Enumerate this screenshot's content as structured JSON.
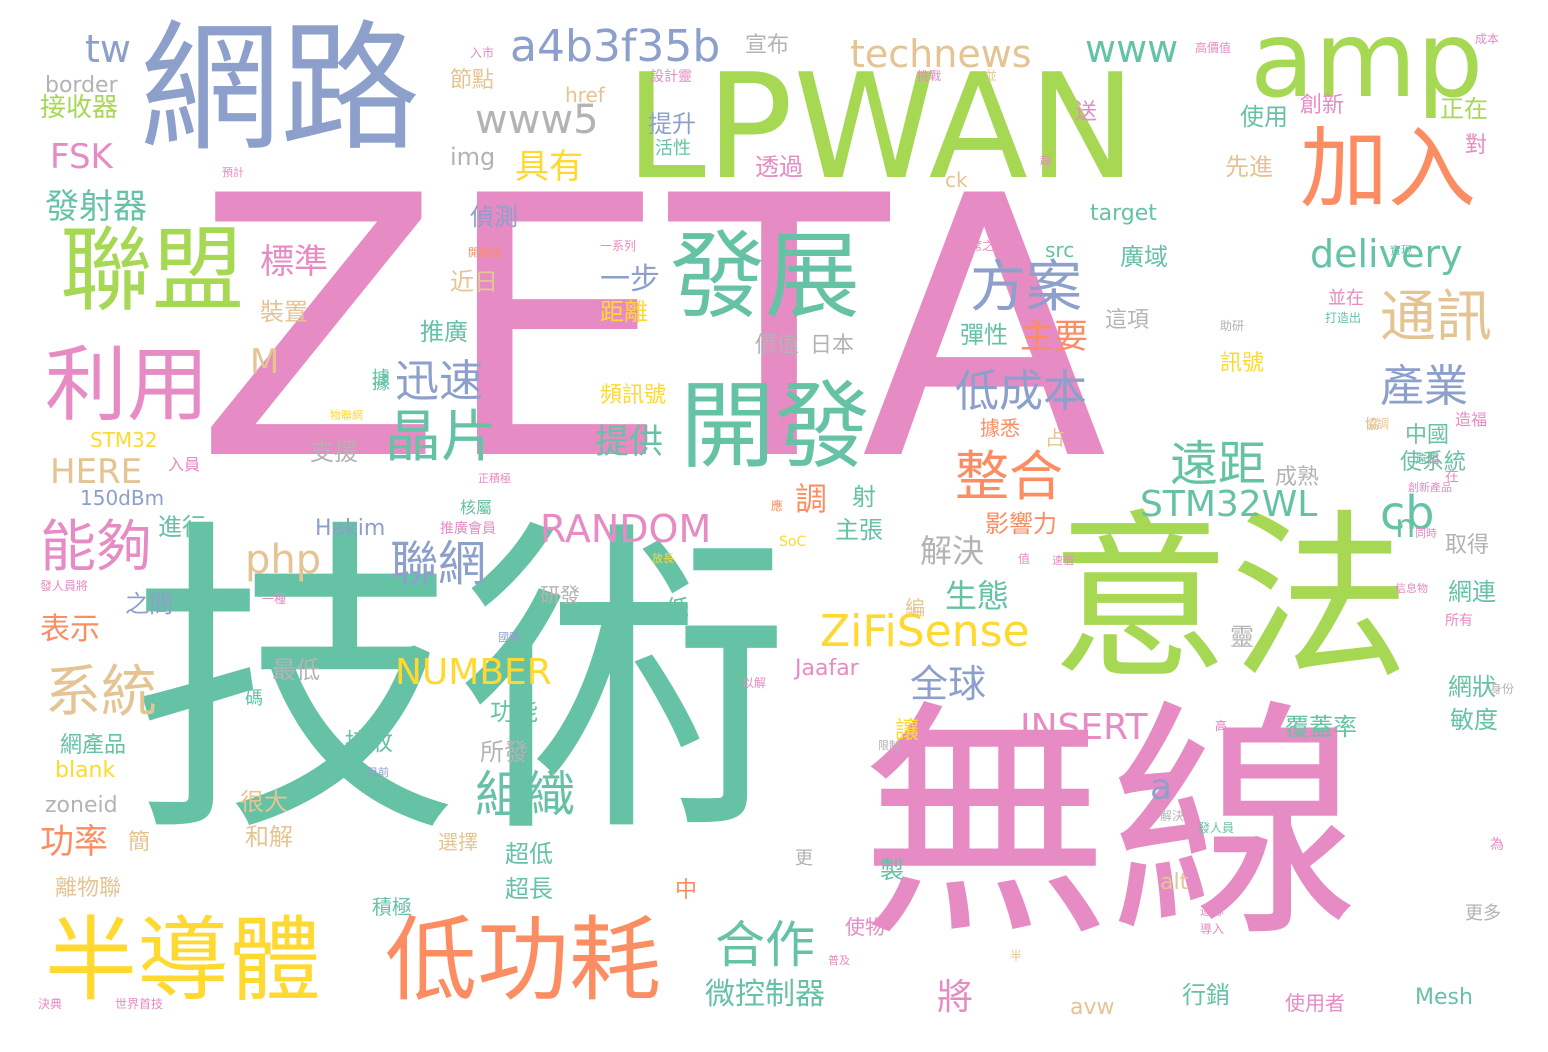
{
  "palette": {
    "pink": "#e68bc3",
    "teal": "#66c2a5",
    "orange": "#fc8d62",
    "blue": "#8da0cb",
    "green": "#a6d854",
    "yellow": "#ffd92f",
    "tan": "#e5c494",
    "gray": "#b3b3b3"
  },
  "words": [
    {
      "text": "ZETA",
      "color": "pink"
    },
    {
      "text": "技術",
      "color": "teal"
    },
    {
      "text": "無線",
      "color": "pink"
    },
    {
      "text": "意法",
      "color": "green"
    },
    {
      "text": "LPWAN",
      "color": "green"
    },
    {
      "text": "網路",
      "color": "blue"
    },
    {
      "text": "amp",
      "color": "green"
    },
    {
      "text": "半導體",
      "color": "yellow"
    },
    {
      "text": "低功耗",
      "color": "orange"
    },
    {
      "text": "聯盟",
      "color": "green"
    },
    {
      "text": "利用",
      "color": "pink"
    },
    {
      "text": "發展",
      "color": "teal"
    },
    {
      "text": "開發",
      "color": "teal"
    },
    {
      "text": "加入",
      "color": "orange"
    },
    {
      "text": "a4b3f35b",
      "color": "blue"
    },
    {
      "text": "technews",
      "color": "tan"
    },
    {
      "text": "www",
      "color": "teal"
    },
    {
      "text": "www5",
      "color": "gray"
    },
    {
      "text": "ZiFiSense",
      "color": "yellow"
    },
    {
      "text": "delivery",
      "color": "teal"
    },
    {
      "text": "方案",
      "color": "blue"
    },
    {
      "text": "通訊",
      "color": "tan"
    },
    {
      "text": "晶片",
      "color": "teal"
    },
    {
      "text": "能夠",
      "color": "pink"
    },
    {
      "text": "系統",
      "color": "tan"
    },
    {
      "text": "RANDOM",
      "color": "pink"
    },
    {
      "text": "STM32WL",
      "color": "teal"
    },
    {
      "text": "INSERT",
      "color": "pink"
    },
    {
      "text": "NUMBER",
      "color": "yellow"
    },
    {
      "text": "php",
      "color": "tan"
    },
    {
      "text": "低成本",
      "color": "blue"
    },
    {
      "text": "整合",
      "color": "orange"
    },
    {
      "text": "遠距",
      "color": "teal"
    },
    {
      "text": "產業",
      "color": "blue"
    },
    {
      "text": "組織",
      "color": "teal"
    },
    {
      "text": "合作",
      "color": "teal"
    },
    {
      "text": "聯網",
      "color": "blue"
    },
    {
      "text": "迅速",
      "color": "blue"
    },
    {
      "text": "全球",
      "color": "blue"
    },
    {
      "text": "cb",
      "color": "teal"
    },
    {
      "text": "tw",
      "color": "blue"
    },
    {
      "text": "FSK",
      "color": "pink"
    },
    {
      "text": "HERE",
      "color": "tan"
    },
    {
      "text": "具有",
      "color": "yellow"
    },
    {
      "text": "標準",
      "color": "pink"
    },
    {
      "text": "主要",
      "color": "orange"
    },
    {
      "text": "提供",
      "color": "teal"
    },
    {
      "text": "功率",
      "color": "orange"
    },
    {
      "text": "表示",
      "color": "orange"
    },
    {
      "text": "發射器",
      "color": "teal"
    },
    {
      "text": "微控制器",
      "color": "teal"
    },
    {
      "text": "生態",
      "color": "teal"
    },
    {
      "text": "解決",
      "color": "gray"
    },
    {
      "text": "一步",
      "color": "blue"
    },
    {
      "text": "border",
      "color": "gray"
    },
    {
      "text": "接收器",
      "color": "green"
    },
    {
      "text": "節點",
      "color": "tan"
    },
    {
      "text": "宣布",
      "color": "gray"
    },
    {
      "text": "img",
      "color": "gray"
    },
    {
      "text": "提升",
      "color": "blue"
    },
    {
      "text": "使用",
      "color": "teal"
    },
    {
      "text": "創新",
      "color": "pink"
    },
    {
      "text": "正在",
      "color": "green"
    },
    {
      "text": "透過",
      "color": "pink"
    },
    {
      "text": "先進",
      "color": "tan"
    },
    {
      "text": "target",
      "color": "teal"
    },
    {
      "text": "偵測",
      "color": "blue"
    },
    {
      "text": "src",
      "color": "teal"
    },
    {
      "text": "廣域",
      "color": "teal"
    },
    {
      "text": "近日",
      "color": "tan"
    },
    {
      "text": "距離",
      "color": "yellow"
    },
    {
      "text": "這項",
      "color": "gray"
    },
    {
      "text": "彈性",
      "color": "teal"
    },
    {
      "text": "裝置",
      "color": "tan"
    },
    {
      "text": "推廣",
      "color": "teal"
    },
    {
      "text": "價值",
      "color": "gray"
    },
    {
      "text": "日本",
      "color": "gray"
    },
    {
      "text": "訊號",
      "color": "yellow"
    },
    {
      "text": "頻訊號",
      "color": "yellow"
    },
    {
      "text": "STM32",
      "color": "yellow"
    },
    {
      "text": "支援",
      "color": "gray"
    },
    {
      "text": "150dBm",
      "color": "blue"
    },
    {
      "text": "Hakim",
      "color": "blue"
    },
    {
      "text": "進行",
      "color": "teal"
    },
    {
      "text": "主張",
      "color": "teal"
    },
    {
      "text": "影響力",
      "color": "orange"
    },
    {
      "text": "成熟",
      "color": "gray"
    },
    {
      "text": "中國",
      "color": "teal"
    },
    {
      "text": "使系統",
      "color": "teal"
    },
    {
      "text": "取得",
      "color": "gray"
    },
    {
      "text": "網連",
      "color": "teal"
    },
    {
      "text": "網狀",
      "color": "teal"
    },
    {
      "text": "敏度",
      "color": "teal"
    },
    {
      "text": "覆蓋率",
      "color": "teal"
    },
    {
      "text": "Jaafar",
      "color": "pink"
    },
    {
      "text": "最低",
      "color": "gray"
    },
    {
      "text": "功能",
      "color": "teal"
    },
    {
      "text": "接收",
      "color": "teal"
    },
    {
      "text": "所發",
      "color": "gray"
    },
    {
      "text": "網產品",
      "color": "teal"
    },
    {
      "text": "blank",
      "color": "yellow"
    },
    {
      "text": "zoneid",
      "color": "gray"
    },
    {
      "text": "很大",
      "color": "tan"
    },
    {
      "text": "和解",
      "color": "tan"
    },
    {
      "text": "超低",
      "color": "teal"
    },
    {
      "text": "超長",
      "color": "teal"
    },
    {
      "text": "離物聯",
      "color": "tan"
    },
    {
      "text": "之間",
      "color": "blue"
    },
    {
      "text": "研發",
      "color": "gray"
    },
    {
      "text": "讓",
      "color": "yellow"
    },
    {
      "text": "製",
      "color": "teal"
    },
    {
      "text": "alt",
      "color": "tan"
    },
    {
      "text": "積極",
      "color": "teal"
    },
    {
      "text": "行銷",
      "color": "teal"
    },
    {
      "text": "avw",
      "color": "tan"
    },
    {
      "text": "Mesh",
      "color": "teal"
    },
    {
      "text": "使用者",
      "color": "pink"
    },
    {
      "text": "更多",
      "color": "gray"
    },
    {
      "text": "將",
      "color": "pink"
    },
    {
      "text": "調",
      "color": "orange"
    },
    {
      "text": "射",
      "color": "teal"
    },
    {
      "text": "n",
      "color": "teal"
    },
    {
      "text": "a",
      "color": "blue"
    },
    {
      "text": "M",
      "color": "tan"
    },
    {
      "text": "靈",
      "color": "gray"
    },
    {
      "text": "更",
      "color": "gray"
    },
    {
      "text": "中",
      "color": "orange"
    },
    {
      "text": "低",
      "color": "teal"
    },
    {
      "text": "編",
      "color": "tan"
    },
    {
      "text": "占",
      "color": "tan"
    },
    {
      "text": "據悉",
      "color": "orange"
    },
    {
      "text": "送",
      "color": "pink"
    },
    {
      "text": "對",
      "color": "pink"
    },
    {
      "text": "ck",
      "color": "tan"
    },
    {
      "text": "href",
      "color": "tan"
    },
    {
      "text": "活性",
      "color": "teal"
    },
    {
      "text": "設計靈",
      "color": "pink"
    },
    {
      "text": "入市",
      "color": "pink"
    },
    {
      "text": "高價值",
      "color": "pink"
    },
    {
      "text": "成本",
      "color": "pink"
    },
    {
      "text": "挑戰",
      "color": "pink"
    },
    {
      "text": "並",
      "color": "tan"
    },
    {
      "text": "一系列",
      "color": "pink"
    },
    {
      "text": "一席之地",
      "color": "pink"
    },
    {
      "text": "開發物",
      "color": "orange"
    },
    {
      "text": "實現",
      "color": "teal"
    },
    {
      "text": "並在",
      "color": "pink"
    },
    {
      "text": "打造出",
      "color": "teal"
    },
    {
      "text": "助研",
      "color": "gray"
    },
    {
      "text": "遠距",
      "color": "teal"
    },
    {
      "text": "創新產品",
      "color": "pink"
    },
    {
      "text": "同時",
      "color": "pink"
    },
    {
      "text": "物聯網",
      "color": "yellow"
    },
    {
      "text": "入員",
      "color": "pink"
    },
    {
      "text": "正積極",
      "color": "pink"
    },
    {
      "text": "核屬",
      "color": "teal"
    },
    {
      "text": "推廣會員",
      "color": "pink"
    },
    {
      "text": "國際",
      "color": "blue"
    },
    {
      "text": "以解",
      "color": "pink"
    },
    {
      "text": "解決",
      "color": "gray"
    },
    {
      "text": "限制",
      "color": "gray"
    },
    {
      "text": "目前",
      "color": "blue"
    },
    {
      "text": "發人員",
      "color": "teal"
    },
    {
      "text": "發人員將",
      "color": "pink"
    },
    {
      "text": "世界首技",
      "color": "pink"
    },
    {
      "text": "普及",
      "color": "pink"
    },
    {
      "text": "運隊",
      "color": "pink"
    },
    {
      "text": "導入",
      "color": "pink"
    },
    {
      "text": "為",
      "color": "pink"
    },
    {
      "text": "身份",
      "color": "gray"
    },
    {
      "text": "所有",
      "color": "pink"
    },
    {
      "text": "信息物",
      "color": "pink"
    },
    {
      "text": "決典",
      "color": "pink"
    },
    {
      "text": "據",
      "color": "teal"
    },
    {
      "text": "碼",
      "color": "teal"
    },
    {
      "text": "值",
      "color": "pink"
    },
    {
      "text": "SoC",
      "color": "yellow"
    },
    {
      "text": "應",
      "color": "orange"
    },
    {
      "text": "圖",
      "color": "pink"
    },
    {
      "text": "在",
      "color": "pink"
    },
    {
      "text": "易",
      "color": "pink"
    },
    {
      "text": "高",
      "color": "pink"
    },
    {
      "text": "使物",
      "color": "pink"
    },
    {
      "text": "一種",
      "color": "pink"
    },
    {
      "text": "據",
      "color": "teal"
    },
    {
      "text": "協",
      "color": "tan"
    },
    {
      "text": "半",
      "color": "tan"
    },
    {
      "text": "放長",
      "color": "yellow"
    },
    {
      "text": "速值",
      "color": "pink"
    },
    {
      "text": "選擇",
      "color": "tan"
    },
    {
      "text": "協調",
      "color": "tan"
    },
    {
      "text": "造福",
      "color": "pink"
    },
    {
      "text": "簡",
      "color": "tan"
    },
    {
      "text": "預計",
      "color": "pink"
    },
    {
      "text": "超",
      "color": "pink"
    },
    {
      "text": "來",
      "color": "pink"
    },
    {
      "text": "高",
      "color": "pink"
    }
  ]
}
